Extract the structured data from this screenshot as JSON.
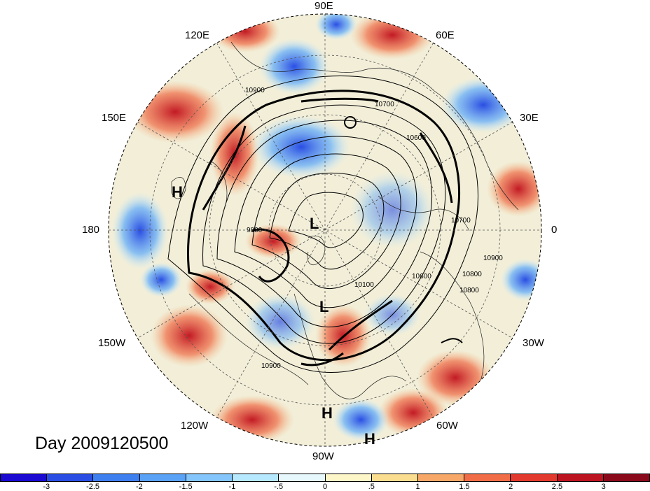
{
  "map": {
    "projection": "north polar stereographic",
    "field": "anomaly shading with geopotential height contours",
    "day_label": "Day 2009120500",
    "lon_labels": [
      "90E",
      "120E",
      "60E",
      "150E",
      "30E",
      "180",
      "0",
      "150W",
      "30W",
      "120W",
      "60W",
      "90W"
    ],
    "pressure_centers": [
      {
        "type": "H",
        "label": "H"
      },
      {
        "type": "L",
        "label": "L"
      },
      {
        "type": "L",
        "label": "L"
      },
      {
        "type": "H",
        "label": "H"
      },
      {
        "type": "H",
        "label": "H"
      }
    ],
    "contour_labels": [
      "10900",
      "10700",
      "10600",
      "10700",
      "10800",
      "10900",
      "9800",
      "10100",
      "10600",
      "10800",
      "10900"
    ]
  },
  "colorbar": {
    "ticks": [
      "-3",
      "-2.5",
      "-2",
      "-1.5",
      "-1",
      "-.5",
      "0",
      ".5",
      "1",
      "1.5",
      "2",
      "2.5",
      "3"
    ],
    "colors": [
      "#1a0ad2",
      "#2a4ee3",
      "#3e7fef",
      "#5aa2f5",
      "#84c6fb",
      "#b6e8fe",
      "#e6f8fc",
      "#fdf6c8",
      "#fbdd8f",
      "#f7a868",
      "#f06d47",
      "#e23a2e",
      "#bd1422",
      "#8a0a1c"
    ]
  }
}
